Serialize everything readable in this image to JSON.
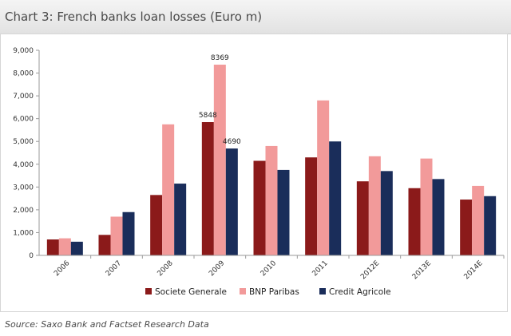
{
  "title": "Chart 3: French banks loan losses (Euro m)",
  "source": "Source: Saxo Bank and Factset Research Data",
  "chart_data": {
    "type": "bar",
    "title": "Chart 3: French banks loan losses (Euro m)",
    "categories": [
      "2006",
      "2007",
      "2008",
      "2009",
      "2010",
      "2011",
      "2012E",
      "2013E",
      "2014E"
    ],
    "series": [
      {
        "name": "Societe Generale",
        "color": "#8b1a1a",
        "values": [
          700,
          900,
          2650,
          5848,
          4150,
          4300,
          3250,
          2950,
          2450
        ]
      },
      {
        "name": "BNP Paribas",
        "color": "#f29a9a",
        "values": [
          750,
          1700,
          5750,
          8369,
          4800,
          6800,
          4350,
          4250,
          3050
        ]
      },
      {
        "name": "Credit Agricole",
        "color": "#1a2d5a",
        "values": [
          600,
          1900,
          3150,
          4690,
          3750,
          5000,
          3700,
          3350,
          2600
        ]
      }
    ],
    "data_labels": [
      {
        "series": 0,
        "category": 3,
        "text": "5848"
      },
      {
        "series": 1,
        "category": 3,
        "text": "8369"
      },
      {
        "series": 2,
        "category": 3,
        "text": "4690"
      }
    ],
    "ylim": [
      0,
      9000
    ],
    "yticks": [
      0,
      1000,
      2000,
      3000,
      4000,
      5000,
      6000,
      7000,
      8000,
      9000
    ],
    "ytick_labels": [
      "0",
      "1,000",
      "2,000",
      "3,000",
      "4,000",
      "5,000",
      "6,000",
      "7,000",
      "8,000",
      "9,000"
    ],
    "grid": false,
    "legend_position": "bottom",
    "xlabel": "",
    "ylabel": ""
  }
}
